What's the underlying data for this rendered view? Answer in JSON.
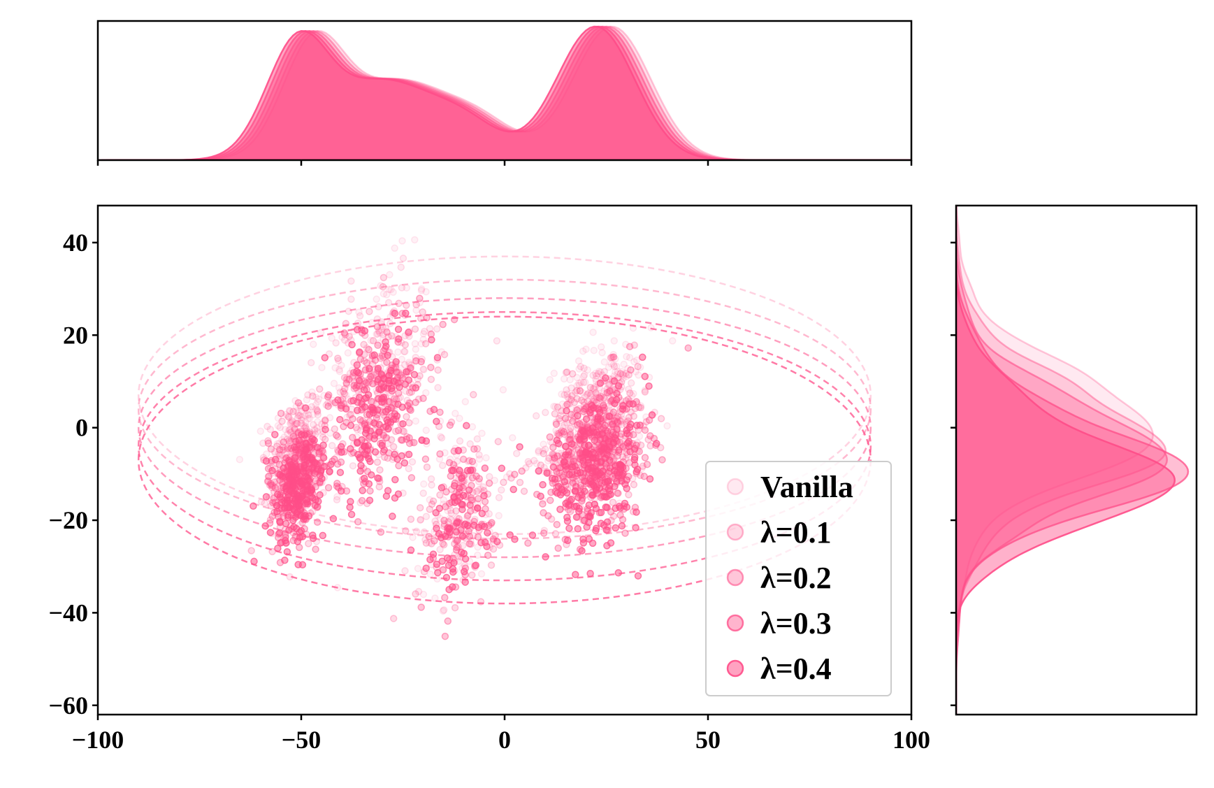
{
  "chart_data": {
    "type": "scatter",
    "title": "",
    "xlabel": "",
    "ylabel": "",
    "xlim": [
      -100,
      100
    ],
    "ylim": [
      -62,
      48
    ],
    "x_ticks": [
      -100,
      -50,
      0,
      50,
      100
    ],
    "y_ticks": [
      -60,
      -40,
      -20,
      0,
      20,
      40
    ],
    "x_tick_labels": [
      "−100",
      "−50",
      "0",
      "50",
      "100"
    ],
    "y_tick_labels": [
      "−60",
      "−40",
      "−20",
      "0",
      "20",
      "40"
    ],
    "legend_position": "lower right",
    "marginals": {
      "top": "x density (KDE) per series",
      "right": "y density (KDE) per series"
    },
    "series": [
      {
        "name": "Vanilla",
        "color": "#ff4d88",
        "opacity": 0.08,
        "y_shift": 18,
        "clusters": [
          {
            "x_range": [
              -58,
              -44
            ],
            "y_range": [
              -18,
              8
            ],
            "approx_points": 350
          },
          {
            "x_range": [
              -44,
              -18
            ],
            "y_range": [
              -8,
              34
            ],
            "approx_points": 300
          },
          {
            "x_range": [
              -22,
              0
            ],
            "y_range": [
              -35,
              5
            ],
            "approx_points": 160
          },
          {
            "x_range": [
              10,
              35
            ],
            "y_range": [
              -12,
              17
            ],
            "approx_points": 500
          }
        ],
        "ellipse": {
          "cx": 0,
          "cy": 7,
          "rx": 90,
          "ry": 30
        }
      },
      {
        "name": "λ=0.1",
        "color": "#ff4d88",
        "opacity": 0.12,
        "y_shift": 13,
        "clusters": [
          {
            "x_range": [
              -58,
              -44
            ],
            "y_range": [
              -20,
              5
            ],
            "approx_points": 350
          },
          {
            "x_range": [
              -44,
              -18
            ],
            "y_range": [
              -10,
              30
            ],
            "approx_points": 300
          },
          {
            "x_range": [
              -22,
              0
            ],
            "y_range": [
              -36,
              2
            ],
            "approx_points": 160
          },
          {
            "x_range": [
              10,
              35
            ],
            "y_range": [
              -15,
              14
            ],
            "approx_points": 500
          }
        ],
        "ellipse": {
          "cx": 0,
          "cy": 4,
          "rx": 90,
          "ry": 28
        }
      },
      {
        "name": "λ=0.2",
        "color": "#ff4d88",
        "opacity": 0.2,
        "y_shift": 8,
        "clusters": [
          {
            "x_range": [
              -58,
              -44
            ],
            "y_range": [
              -22,
              2
            ],
            "approx_points": 350
          },
          {
            "x_range": [
              -44,
              -18
            ],
            "y_range": [
              -12,
              27
            ],
            "approx_points": 300
          },
          {
            "x_range": [
              -22,
              0
            ],
            "y_range": [
              -37,
              0
            ],
            "approx_points": 160
          },
          {
            "x_range": [
              10,
              35
            ],
            "y_range": [
              -18,
              11
            ],
            "approx_points": 500
          }
        ],
        "ellipse": {
          "cx": 0,
          "cy": 0,
          "rx": 90,
          "ry": 28
        }
      },
      {
        "name": "λ=0.3",
        "color": "#ff4d88",
        "opacity": 0.32,
        "y_shift": 3,
        "clusters": [
          {
            "x_range": [
              -58,
              -44
            ],
            "y_range": [
              -24,
              0
            ],
            "approx_points": 350
          },
          {
            "x_range": [
              -44,
              -18
            ],
            "y_range": [
              -14,
              25
            ],
            "approx_points": 300
          },
          {
            "x_range": [
              -22,
              0
            ],
            "y_range": [
              -38,
              -2
            ],
            "approx_points": 160
          },
          {
            "x_range": [
              10,
              35
            ],
            "y_range": [
              -21,
              8
            ],
            "approx_points": 500
          }
        ],
        "ellipse": {
          "cx": 0,
          "cy": -4,
          "rx": 90,
          "ry": 29
        }
      },
      {
        "name": "λ=0.4",
        "color": "#ff4d88",
        "opacity": 0.5,
        "y_shift": 0,
        "clusters": [
          {
            "x_range": [
              -58,
              -44
            ],
            "y_range": [
              -27,
              -2
            ],
            "approx_points": 350
          },
          {
            "x_range": [
              -44,
              -18
            ],
            "y_range": [
              -16,
              22
            ],
            "approx_points": 300
          },
          {
            "x_range": [
              -22,
              0
            ],
            "y_range": [
              -40,
              -5
            ],
            "approx_points": 160
          },
          {
            "x_range": [
              10,
              35
            ],
            "y_range": [
              -25,
              5
            ],
            "approx_points": 500
          }
        ],
        "ellipse": {
          "cx": 0,
          "cy": -7,
          "rx": 90,
          "ry": 31
        }
      }
    ]
  }
}
